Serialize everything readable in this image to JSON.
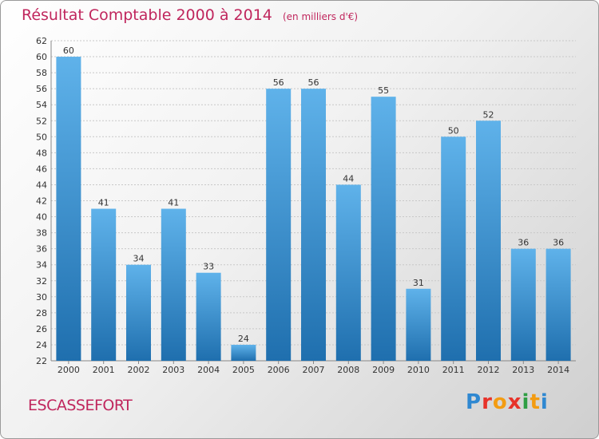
{
  "header": {
    "title": "Résultat Comptable 2000 à 2014",
    "subtitle": "(en milliers d'€)"
  },
  "footer": {
    "commune": "ESCASSEFORT",
    "logo_letters": [
      "P",
      "r",
      "o",
      "x",
      "i",
      "t",
      "i"
    ],
    "logo_colors": [
      "#2f88d1",
      "#e7332a",
      "#f39c12",
      "#e7332a",
      "#2f9e44",
      "#f39c12",
      "#2f88d1"
    ]
  },
  "colors": {
    "bar_light": "#5fb2ea",
    "bar_dark": "#1f6fae",
    "title": "#c0265d",
    "grid": "#c8c8c8"
  },
  "chart_data": {
    "type": "bar",
    "categories": [
      "2000",
      "2001",
      "2002",
      "2003",
      "2004",
      "2005",
      "2006",
      "2007",
      "2008",
      "2009",
      "2010",
      "2011",
      "2012",
      "2013",
      "2014"
    ],
    "values": [
      60,
      41,
      34,
      41,
      33,
      24,
      56,
      56,
      44,
      55,
      31,
      50,
      52,
      36,
      36
    ],
    "title": "Résultat Comptable 2000 à 2014",
    "ylim": [
      22,
      62
    ],
    "ytick_step": 2,
    "grid": true,
    "data_labels": true
  }
}
